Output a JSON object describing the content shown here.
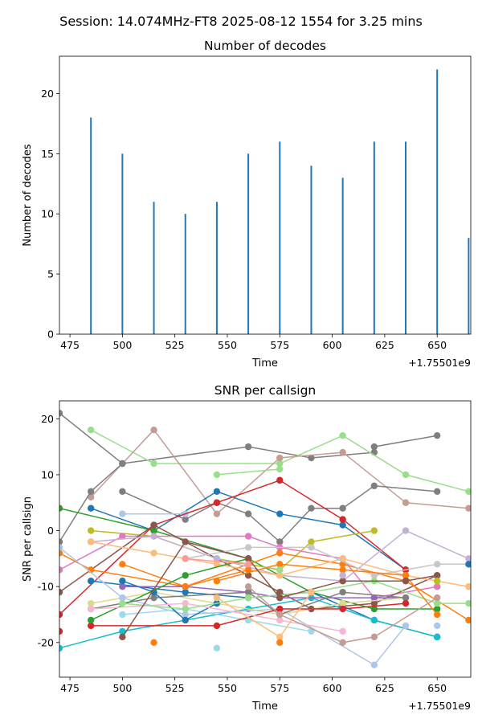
{
  "suptitle": "Session: 14.074MHz-FT8 2025-08-12 1554 for 3.25 mins",
  "chart_data": [
    {
      "type": "bar",
      "title": "Number of decodes",
      "xlabel": "Time",
      "ylabel": "Number of decodes",
      "x_offset_label": "+1.75501e9",
      "xlim": [
        470,
        666
      ],
      "ylim": [
        0,
        23.1
      ],
      "xticks": [
        475,
        500,
        525,
        550,
        575,
        600,
        625,
        650
      ],
      "yticks": [
        0,
        5,
        10,
        15,
        20
      ],
      "color": "#1f77b4",
      "x": [
        485,
        500,
        515,
        530,
        545,
        560,
        575,
        590,
        605,
        620,
        635,
        650,
        665
      ],
      "values": [
        18,
        15,
        11,
        10,
        11,
        15,
        16,
        14,
        13,
        16,
        16,
        22,
        8
      ]
    },
    {
      "type": "line",
      "title": "SNR per callsign",
      "xlabel": "Time",
      "ylabel": "SNR per callsign",
      "x_offset_label": "+1.75501e9",
      "xlim": [
        470,
        666
      ],
      "ylim": [
        -26.2,
        23.2
      ],
      "xticks": [
        475,
        500,
        525,
        550,
        575,
        600,
        625,
        650
      ],
      "yticks": [
        -20,
        -10,
        0,
        10,
        20
      ],
      "series": [
        {
          "color": "#7f7f7f",
          "points": [
            [
              470,
              21
            ],
            [
              500,
              12
            ],
            [
              560,
              15
            ],
            [
              590,
              13
            ],
            [
              620,
              14
            ]
          ]
        },
        {
          "color": "#98df8a",
          "points": [
            [
              485,
              18
            ],
            [
              515,
              12
            ],
            [
              575,
              12
            ],
            [
              605,
              17
            ],
            [
              635,
              10
            ],
            [
              665,
              7
            ]
          ]
        },
        {
          "color": "#c49c94",
          "points": [
            [
              485,
              6
            ],
            [
              515,
              18
            ],
            [
              545,
              3
            ],
            [
              575,
              13
            ],
            [
              605,
              14
            ],
            [
              635,
              5
            ],
            [
              665,
              4
            ]
          ]
        },
        {
          "color": "#98df8a",
          "points": [
            [
              545,
              10
            ],
            [
              575,
              11
            ]
          ]
        },
        {
          "color": "#7f7f7f",
          "points": [
            [
              620,
              15
            ],
            [
              650,
              17
            ]
          ]
        },
        {
          "color": "#7f7f7f",
          "points": [
            [
              470,
              -2
            ],
            [
              485,
              7
            ],
            [
              500,
              12
            ]
          ]
        },
        {
          "color": "#7f7f7f",
          "points": [
            [
              500,
              7
            ],
            [
              530,
              2
            ],
            [
              545,
              5
            ],
            [
              560,
              3
            ],
            [
              575,
              -2
            ],
            [
              590,
              4
            ],
            [
              605,
              4
            ],
            [
              620,
              8
            ],
            [
              650,
              7
            ]
          ]
        },
        {
          "color": "#1f77b4",
          "points": [
            [
              485,
              4
            ],
            [
              515,
              0
            ],
            [
              545,
              7
            ],
            [
              575,
              3
            ],
            [
              605,
              1
            ],
            [
              635,
              -7
            ]
          ]
        },
        {
          "color": "#2ca02c",
          "points": [
            [
              470,
              4
            ],
            [
              515,
              0
            ],
            [
              560,
              -5
            ],
            [
              590,
              -11
            ],
            [
              620,
              -14
            ],
            [
              650,
              -14
            ]
          ]
        },
        {
          "color": "#aec7e8",
          "points": [
            [
              500,
              3
            ],
            [
              530,
              3
            ]
          ]
        },
        {
          "color": "#d62728",
          "points": [
            [
              470,
              -15
            ],
            [
              515,
              1
            ],
            [
              545,
              5
            ],
            [
              575,
              9
            ],
            [
              605,
              2
            ],
            [
              635,
              -7
            ]
          ]
        },
        {
          "color": "#bcbd22",
          "points": [
            [
              485,
              0
            ],
            [
              515,
              -1
            ],
            [
              545,
              -5
            ],
            [
              575,
              -7
            ],
            [
              590,
              -2
            ],
            [
              620,
              0
            ]
          ]
        },
        {
          "color": "#e377c2",
          "points": [
            [
              470,
              -7
            ],
            [
              500,
              -1
            ],
            [
              560,
              -1
            ],
            [
              575,
              -3
            ],
            [
              605,
              -5
            ],
            [
              620,
              -12
            ],
            [
              650,
              -10
            ]
          ]
        },
        {
          "color": "#8c564b",
          "points": [
            [
              470,
              -11
            ],
            [
              515,
              1
            ],
            [
              560,
              -8
            ],
            [
              575,
              -11
            ],
            [
              590,
              -14
            ],
            [
              620,
              -13
            ],
            [
              650,
              -8
            ]
          ]
        },
        {
          "color": "#ff7f0e",
          "points": [
            [
              470,
              -4
            ],
            [
              485,
              -7
            ],
            [
              530,
              -10
            ],
            [
              575,
              -4
            ],
            [
              605,
              -6
            ],
            [
              635,
              -9
            ],
            [
              665,
              -16
            ]
          ]
        },
        {
          "color": "#1f77b4",
          "points": [
            [
              485,
              -9
            ],
            [
              530,
              -11
            ],
            [
              560,
              -12
            ],
            [
              590,
              -11
            ],
            [
              620,
              -16
            ],
            [
              650,
              -19
            ]
          ]
        },
        {
          "color": "#c5b0d5",
          "points": [
            [
              485,
              -2
            ],
            [
              515,
              -1
            ],
            [
              545,
              -5
            ],
            [
              575,
              -8
            ],
            [
              605,
              -9
            ],
            [
              635,
              0
            ],
            [
              665,
              -5
            ]
          ]
        },
        {
          "color": "#17becf",
          "points": [
            [
              470,
              -21
            ],
            [
              500,
              -18
            ],
            [
              560,
              -14
            ],
            [
              590,
              -12
            ],
            [
              620,
              -16
            ],
            [
              650,
              -19
            ]
          ]
        },
        {
          "color": "#ffbb78",
          "points": [
            [
              485,
              -2
            ],
            [
              515,
              -4
            ],
            [
              545,
              -6
            ],
            [
              575,
              -8
            ],
            [
              605,
              -5
            ],
            [
              635,
              -8
            ],
            [
              665,
              -10
            ]
          ]
        },
        {
          "color": "#9467bd",
          "points": [
            [
              500,
              -10
            ],
            [
              530,
              -10
            ],
            [
              560,
              -11
            ],
            [
              575,
              -12
            ],
            [
              620,
              -12
            ],
            [
              635,
              -12
            ]
          ]
        },
        {
          "color": "#dbdb8d",
          "points": [
            [
              485,
              -13
            ],
            [
              515,
              -11
            ],
            [
              545,
              -13
            ],
            [
              575,
              -15
            ],
            [
              605,
              -13
            ],
            [
              635,
              -12
            ]
          ]
        },
        {
          "color": "#aec7e8",
          "points": [
            [
              470,
              -3
            ],
            [
              500,
              -12
            ],
            [
              530,
              -15
            ],
            [
              575,
              -14
            ],
            [
              620,
              -24
            ],
            [
              635,
              -17
            ]
          ]
        },
        {
          "color": "#9edae5",
          "points": [
            [
              500,
              -15
            ],
            [
              530,
              -14
            ],
            [
              560,
              -16
            ],
            [
              590,
              -18
            ]
          ]
        },
        {
          "color": "#7f7f7f",
          "points": [
            [
              485,
              -14
            ],
            [
              515,
              -12
            ],
            [
              560,
              -11
            ],
            [
              575,
              -15
            ],
            [
              605,
              -11
            ],
            [
              635,
              -12
            ]
          ]
        },
        {
          "color": "#d62728",
          "points": [
            [
              485,
              -17
            ],
            [
              545,
              -17
            ],
            [
              575,
              -14
            ],
            [
              605,
              -14
            ],
            [
              635,
              -13
            ]
          ]
        },
        {
          "color": "#ff7f0e",
          "points": [
            [
              500,
              -6
            ],
            [
              530,
              -10
            ],
            [
              560,
              -7
            ]
          ]
        },
        {
          "color": "#c7c7c7",
          "points": [
            [
              530,
              -5
            ],
            [
              560,
              -3
            ],
            [
              590,
              -3
            ],
            [
              620,
              -8
            ],
            [
              650,
              -6
            ],
            [
              665,
              -6
            ]
          ]
        },
        {
          "color": "#1f77b4",
          "points": [
            [
              500,
              -9
            ],
            [
              515,
              -11
            ],
            [
              530,
              -16
            ],
            [
              545,
              -13
            ]
          ]
        },
        {
          "color": "#2ca02c",
          "points": [
            [
              485,
              -16
            ],
            [
              530,
              -8
            ],
            [
              560,
              -5
            ]
          ]
        },
        {
          "color": "#f7b6d2",
          "points": [
            [
              485,
              -14
            ],
            [
              530,
              -13
            ],
            [
              575,
              -16
            ],
            [
              605,
              -18
            ]
          ]
        },
        {
          "color": "#98df8a",
          "points": [
            [
              500,
              -13
            ],
            [
              530,
              -14
            ],
            [
              560,
              -12
            ],
            [
              590,
              -11
            ],
            [
              620,
              -9
            ],
            [
              650,
              -13
            ],
            [
              665,
              -13
            ]
          ]
        },
        {
          "color": "#ff7f0e",
          "points": [
            [
              545,
              -9
            ],
            [
              575,
              -6
            ],
            [
              605,
              -7
            ],
            [
              635,
              -8
            ],
            [
              650,
              -15
            ]
          ]
        },
        {
          "color": "#8c564b",
          "points": [
            [
              500,
              -19
            ],
            [
              530,
              -2
            ],
            [
              560,
              -5
            ],
            [
              575,
              -12
            ],
            [
              605,
              -9
            ],
            [
              635,
              -9
            ],
            [
              650,
              -8
            ]
          ]
        },
        {
          "color": "#c49c94",
          "points": [
            [
              560,
              -10
            ],
            [
              575,
              -15
            ],
            [
              605,
              -20
            ],
            [
              620,
              -19
            ],
            [
              650,
              -12
            ]
          ]
        },
        {
          "color": "#ffbb78",
          "points": [
            [
              545,
              -12
            ],
            [
              575,
              -19
            ],
            [
              590,
              -11
            ]
          ]
        },
        {
          "color": "#ff9896",
          "points": [
            [
              530,
              -5
            ],
            [
              560,
              -6
            ]
          ]
        },
        {
          "color": "#ff7f0e",
          "points": [
            [
              515,
              -20
            ]
          ]
        },
        {
          "color": "#9edae5",
          "points": [
            [
              545,
              -21
            ]
          ]
        },
        {
          "color": "#ff7f0e",
          "points": [
            [
              575,
              -20
            ]
          ]
        },
        {
          "color": "#f7b6d2",
          "points": [
            [
              605,
              -18
            ]
          ]
        },
        {
          "color": "#e377c2",
          "points": [
            [
              650,
              -10
            ]
          ]
        },
        {
          "color": "#aec7e8",
          "points": [
            [
              650,
              -17
            ]
          ]
        },
        {
          "color": "#bcbd22",
          "points": [
            [
              650,
              -9
            ]
          ]
        },
        {
          "color": "#1f77b4",
          "points": [
            [
              665,
              -6
            ]
          ]
        },
        {
          "color": "#d62728",
          "points": [
            [
              470,
              -18
            ]
          ]
        },
        {
          "color": "#98df8a",
          "points": [
            [
              575,
              -7
            ]
          ]
        },
        {
          "color": "#c5b0d5",
          "points": [
            [
              605,
              -8
            ]
          ]
        }
      ]
    }
  ]
}
